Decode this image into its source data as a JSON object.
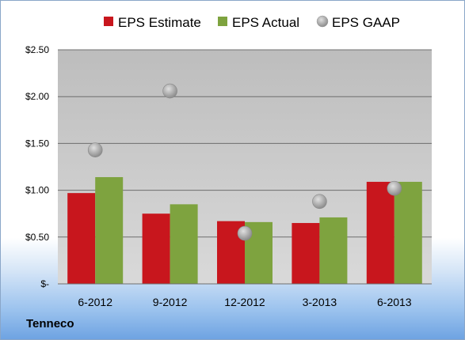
{
  "company": "Tenneco",
  "colors": {
    "estimate": "#c8161d",
    "actual": "#7ea33f",
    "gaap": "#9a9a9a"
  },
  "chart_data": {
    "type": "bar",
    "categories": [
      "6-2012",
      "9-2012",
      "12-2012",
      "3-2013",
      "6-2013"
    ],
    "series": [
      {
        "name": "EPS Estimate",
        "type": "bar",
        "values": [
          0.97,
          0.75,
          0.67,
          0.65,
          1.09
        ]
      },
      {
        "name": "EPS Actual",
        "type": "bar",
        "values": [
          1.14,
          0.85,
          0.66,
          0.71,
          1.09
        ]
      },
      {
        "name": "EPS GAAP",
        "type": "scatter",
        "values": [
          1.43,
          2.06,
          0.54,
          0.88,
          1.02
        ]
      }
    ],
    "yticks": [
      "$-",
      "$0.50",
      "$1.00",
      "$1.50",
      "$2.00",
      "$2.50"
    ],
    "ylim": [
      0,
      2.5
    ],
    "grid": true,
    "legend": "top"
  }
}
